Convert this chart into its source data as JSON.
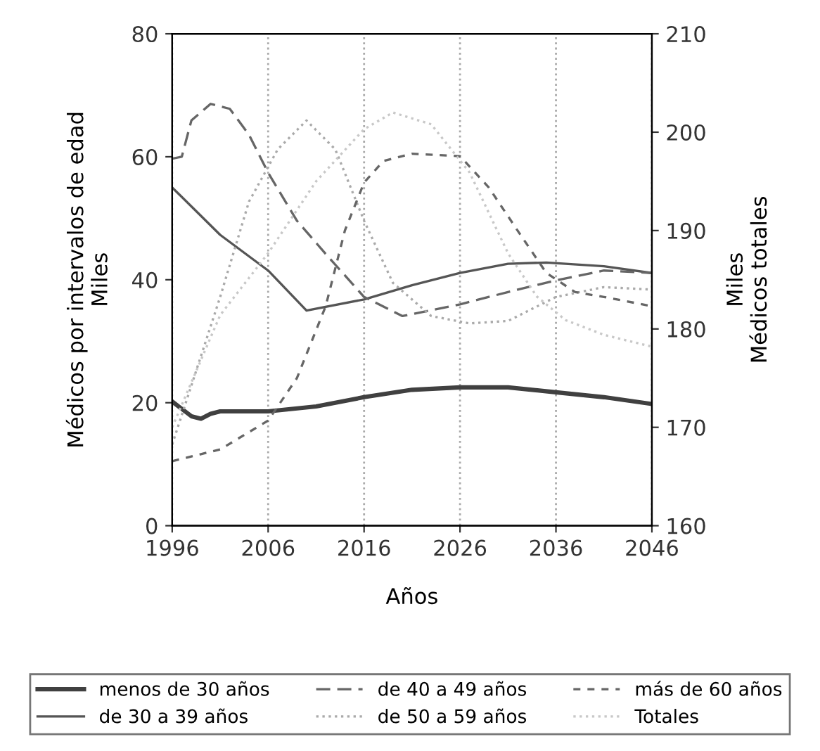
{
  "chart_data": {
    "type": "line",
    "xlabel": "Años",
    "ylabel": "Médicos por intervalos de edad\nMiles",
    "y2label": "Miles\nMédicos totales",
    "xlim": [
      1996,
      2046
    ],
    "xticks": [
      1996,
      2006,
      2016,
      2026,
      2036,
      2046
    ],
    "ylim": [
      0,
      80
    ],
    "yticks": [
      0,
      20,
      40,
      60,
      80
    ],
    "y2lim": [
      160,
      210
    ],
    "y2ticks": [
      160,
      170,
      180,
      190,
      200,
      210
    ],
    "grid": "x",
    "legend": "bottom",
    "marker": "none",
    "series": [
      {
        "name": "menos de 30 años",
        "color": "#404040",
        "line_style": "solid",
        "x": [
          1996,
          1998,
          1999,
          2000,
          2001,
          2006,
          2011,
          2016,
          2021,
          2026,
          2031,
          2036,
          2041,
          2046
        ],
        "values": [
          20.2,
          17.8,
          17.4,
          18.2,
          18.6,
          18.6,
          19.4,
          20.9,
          22.1,
          22.5,
          22.5,
          21.7,
          20.9,
          19.8
        ]
      },
      {
        "name": "de 30 a 39 años",
        "color": "#555555",
        "line_style": "solid",
        "x": [
          1996,
          2001,
          2006,
          2010,
          2016,
          2021,
          2026,
          2031,
          2035,
          2041,
          2046
        ],
        "values": [
          55,
          47.3,
          41.5,
          35,
          36.8,
          39.1,
          41.1,
          42.6,
          42.8,
          42.2,
          41.1
        ]
      },
      {
        "name": "de 40 a 49 años",
        "color": "#666666",
        "line_style": "dashed",
        "x": [
          1996,
          1997,
          1998,
          2000,
          2002,
          2004,
          2006,
          2009,
          2012,
          2016,
          2020,
          2026,
          2031,
          2036,
          2041,
          2046
        ],
        "values": [
          59.7,
          60,
          65.9,
          68.6,
          67.8,
          63.6,
          57.4,
          49.6,
          44.2,
          37.2,
          34.1,
          36,
          38,
          39.9,
          41.5,
          41.1
        ]
      },
      {
        "name": "de 50 a 59 años",
        "color": "#aaaaaa",
        "line_style": "dotted",
        "x": [
          1996,
          2001,
          2004,
          2007,
          2010,
          2013,
          2016,
          2019,
          2023,
          2027,
          2031,
          2036,
          2041,
          2046
        ],
        "values": [
          13.2,
          37.2,
          52.7,
          61.2,
          65.9,
          61.2,
          49.6,
          39.5,
          34.1,
          32.9,
          33.3,
          37.2,
          38.8,
          38.4
        ]
      },
      {
        "name": "más de 60 años",
        "color": "#666666",
        "line_style": "dashed",
        "x": [
          1996,
          2001,
          2006,
          2009,
          2012,
          2014,
          2016,
          2018,
          2021,
          2026,
          2029,
          2032,
          2035,
          2038,
          2041,
          2046
        ],
        "values": [
          10.5,
          12.4,
          17.1,
          24,
          35.7,
          48,
          55.8,
          59.3,
          60.5,
          60.1,
          55,
          48,
          41.1,
          38,
          37.2,
          35.7
        ]
      },
      {
        "name": "Totales",
        "color": "#c8c8c8",
        "line_style": "dotted",
        "axis": "y2",
        "x": [
          1996,
          2001,
          2006,
          2011,
          2016,
          2019,
          2023,
          2027,
          2031,
          2034,
          2037,
          2041,
          2046
        ],
        "values": [
          170,
          181.4,
          187.7,
          195,
          200.3,
          202,
          200.8,
          195.9,
          187.7,
          183.3,
          180.9,
          179.4,
          178.2
        ]
      }
    ]
  }
}
